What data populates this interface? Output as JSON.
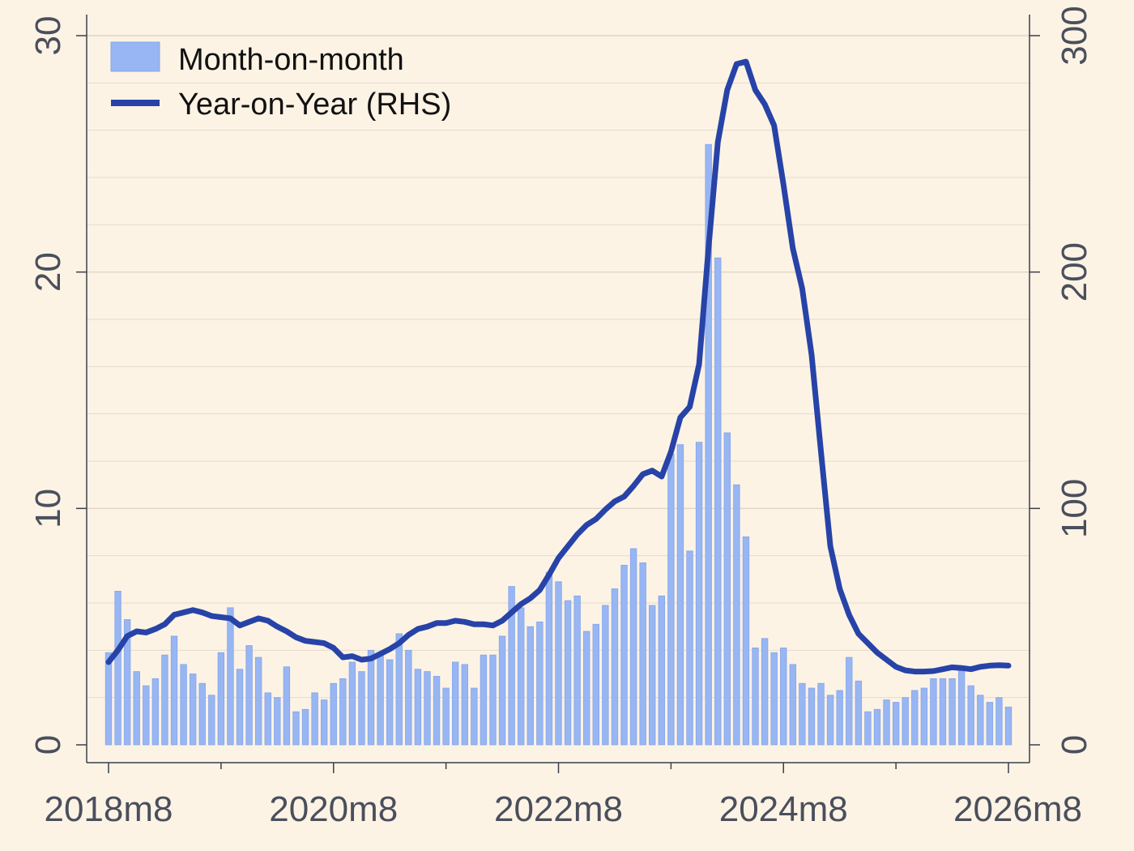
{
  "chart_data": {
    "type": "bar",
    "title": "",
    "xlabel": "",
    "ylabel": "",
    "y2label": "",
    "x_tick_labels": [
      "2018m8",
      "2020m8",
      "2022m8",
      "2024m8",
      "2026m8"
    ],
    "x_start": "2018m8",
    "x_end": "2026m8",
    "ylim": [
      0,
      30
    ],
    "y_ticks": [
      0,
      10,
      20,
      30
    ],
    "y2lim": [
      0,
      300
    ],
    "y2_ticks": [
      0,
      100,
      200,
      300
    ],
    "grid": true,
    "legend_position": "top-left",
    "series": [
      {
        "name": "Month-on-month",
        "type": "bar",
        "axis": "left",
        "color": "#97b6f3",
        "values": [
          3.9,
          6.5,
          5.3,
          3.1,
          2.5,
          2.8,
          3.8,
          4.6,
          3.4,
          3.0,
          2.6,
          2.1,
          3.9,
          5.8,
          3.2,
          4.2,
          3.7,
          2.2,
          2.0,
          3.3,
          1.4,
          1.5,
          2.2,
          1.9,
          2.6,
          2.8,
          3.5,
          3.1,
          4.0,
          3.9,
          3.6,
          4.7,
          4.0,
          3.2,
          3.1,
          2.9,
          2.4,
          3.5,
          3.4,
          2.4,
          3.8,
          3.8,
          4.6,
          6.7,
          5.8,
          5.0,
          5.2,
          7.3,
          6.9,
          6.1,
          6.3,
          4.8,
          5.1,
          5.9,
          6.6,
          7.6,
          8.3,
          7.7,
          5.9,
          6.3,
          12.3,
          12.7,
          8.2,
          12.8,
          25.4,
          20.6,
          13.2,
          11.0,
          8.8,
          4.1,
          4.5,
          3.9,
          4.1,
          3.4,
          2.6,
          2.4,
          2.6,
          2.1,
          2.3,
          3.7,
          2.7,
          1.4,
          1.5,
          1.9,
          1.8,
          2.0,
          2.3,
          2.4,
          2.8,
          2.8,
          2.8,
          3.2,
          2.5,
          2.1,
          1.8,
          2.0,
          1.6
        ]
      },
      {
        "name": "Year-on-Year (RHS)",
        "type": "line",
        "axis": "right",
        "color": "#2743a8",
        "values": [
          35,
          40,
          46,
          48,
          47.5,
          49,
          51,
          55,
          56,
          57,
          56,
          54.5,
          54,
          53.5,
          50.5,
          52,
          53.5,
          52.5,
          50,
          48,
          45.5,
          44,
          43.5,
          43,
          41,
          37,
          37.5,
          36,
          36.5,
          38.5,
          40.5,
          43,
          46.5,
          49,
          50,
          51.5,
          51.5,
          52.5,
          52,
          51,
          51,
          50.5,
          52.5,
          56,
          59.5,
          62,
          65.5,
          72,
          79,
          84,
          89,
          93,
          95.5,
          99.5,
          103,
          105,
          109.5,
          114.5,
          116,
          113.5,
          124,
          138.5,
          143,
          161,
          210,
          255,
          277,
          288,
          289,
          277,
          271,
          262,
          237,
          210,
          193,
          165,
          124,
          84,
          66,
          55,
          47,
          43,
          39,
          36,
          33,
          31.5,
          31,
          31,
          31.2,
          32,
          32.8,
          32.5,
          32,
          33,
          33.5,
          33.7,
          33.5
        ]
      }
    ]
  }
}
